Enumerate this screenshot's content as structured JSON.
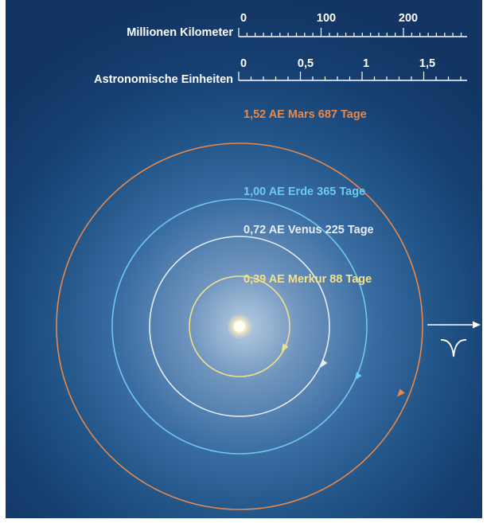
{
  "scales": {
    "km": {
      "label": "Millionen Kilometer",
      "ticks": [
        "0",
        "100",
        "200"
      ]
    },
    "au": {
      "label": "Astronomische Einheiten",
      "ticks": [
        "0",
        "0,5",
        "1",
        "1,5"
      ]
    }
  },
  "orbits": [
    {
      "label": "1,52 AE Mars 687 Tage",
      "color": "#e8884a"
    },
    {
      "label": "1,00 AE Erde 365 Tage",
      "color": "#6ec8f0"
    },
    {
      "label": "0,72 AE Venus 225 Tage",
      "color": "#e6edf5"
    },
    {
      "label": "0,39 AE Merkur 88 Tage",
      "color": "#f2e08a"
    }
  ],
  "vernal_equinox": {
    "symbol": "♈",
    "arrow_icon": "arrow-right-icon"
  }
}
